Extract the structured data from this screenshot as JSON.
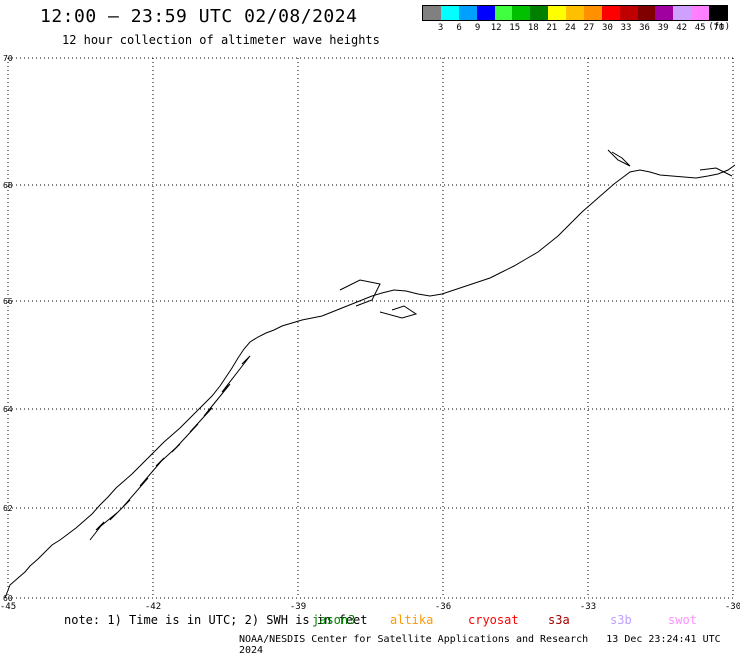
{
  "header": {
    "title": "12:00 — 23:59 UTC 02/08/2024",
    "subtitle": "12 hour collection of altimeter wave heights"
  },
  "legend": {
    "labels": [
      "3",
      "6",
      "9",
      "12",
      "15",
      "18",
      "21",
      "24",
      "27",
      "30",
      "33",
      "36",
      "39",
      "42",
      "45",
      "70"
    ],
    "unit": "(ft)",
    "colors": [
      "#808080",
      "#00ffff",
      "#00a0ff",
      "#0000ff",
      "#40ff40",
      "#00c000",
      "#008000",
      "#ffff00",
      "#ffc000",
      "#ff9000",
      "#ff0000",
      "#c00000",
      "#800000",
      "#a000a0",
      "#d0a0ff",
      "#ff80ff",
      "#000000"
    ]
  },
  "map": {
    "lat_labels": [
      "70",
      "68",
      "66",
      "64",
      "62",
      "60"
    ],
    "lon_labels": [
      "-45",
      "-42",
      "-39",
      "-36",
      "-33",
      "-30"
    ],
    "grid": true
  },
  "footer": {
    "note": "note: 1) Time is in UTC; 2) SWH is in feet",
    "satellites": [
      {
        "name": "jason3",
        "color": "#008000"
      },
      {
        "name": "altika",
        "color": "#ff9900"
      },
      {
        "name": "cryosat",
        "color": "#ff0000"
      },
      {
        "name": "s3a",
        "color": "#a00000"
      },
      {
        "name": "s3b",
        "color": "#c0a0ff"
      },
      {
        "name": "swot",
        "color": "#ff90ff"
      }
    ],
    "credit": "NOAA/NESDIS Center for Satellite Applications and Research",
    "timestamp": "13 Dec 23:24:41 UTC 2024"
  }
}
